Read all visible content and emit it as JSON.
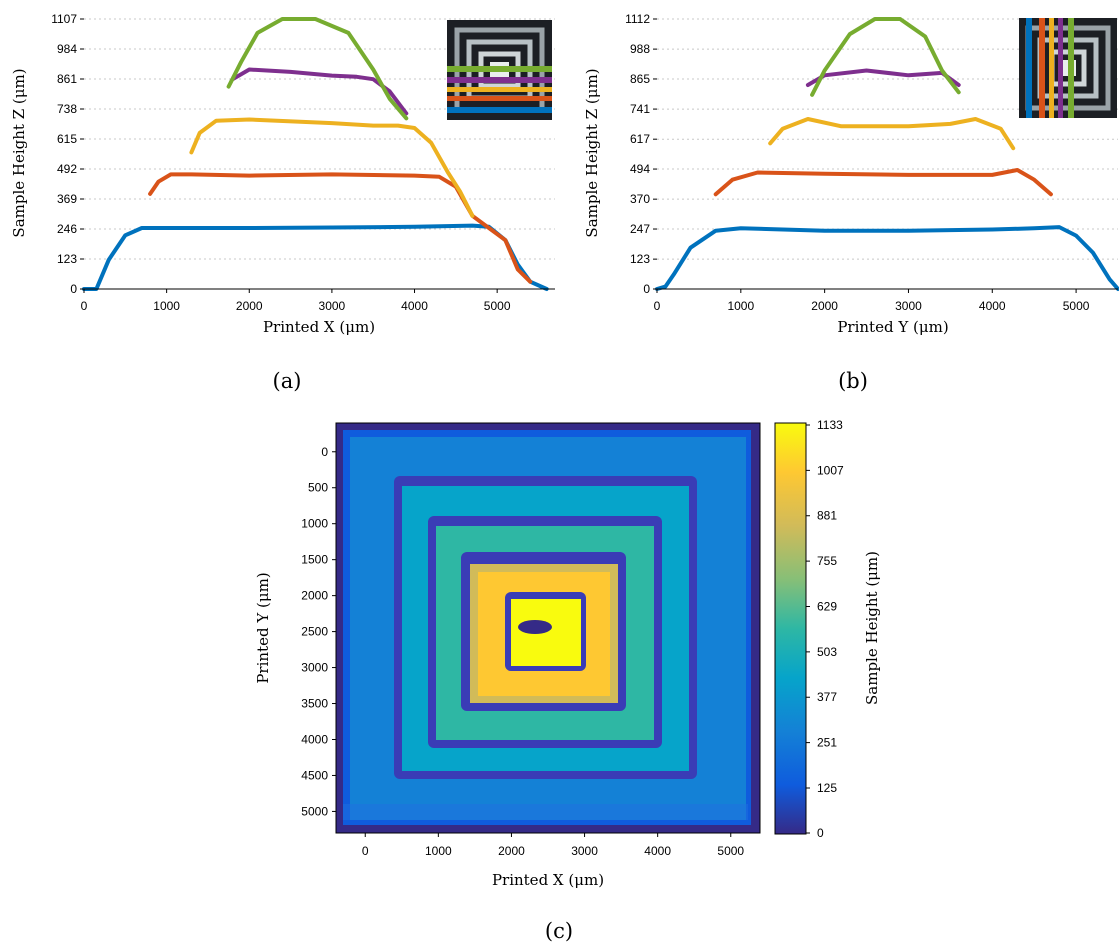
{
  "captions": {
    "a": "(a)",
    "b": "(b)",
    "c": "(c)"
  },
  "chart_data": [
    {
      "type": "line",
      "xlabel": "Printed X (μm)",
      "ylabel": "Sample Height Z (μm)",
      "xlim": [
        0,
        5700
      ],
      "ylim": [
        0,
        1107
      ],
      "xticks": [
        0,
        1000,
        2000,
        3000,
        4000,
        5000
      ],
      "yticks": [
        0,
        123,
        246,
        369,
        492,
        615,
        738,
        861,
        984,
        1107
      ],
      "grid": "horizontal-dotted",
      "inset": "top-right",
      "series": [
        {
          "color": "#0072BD",
          "x": [
            0,
            150,
            300,
            500,
            700,
            1000,
            2000,
            3000,
            4000,
            4700,
            4900,
            5100,
            5250,
            5400,
            5600
          ],
          "y": [
            0,
            0,
            120,
            220,
            250,
            250,
            250,
            252,
            255,
            260,
            255,
            200,
            100,
            30,
            0
          ]
        },
        {
          "color": "#D95319",
          "x": [
            800,
            900,
            1050,
            1300,
            2000,
            3000,
            4000,
            4300,
            4500,
            4700,
            4900,
            5100,
            5250,
            5400
          ],
          "y": [
            390,
            440,
            470,
            470,
            465,
            470,
            465,
            460,
            420,
            300,
            250,
            200,
            80,
            30
          ]
        },
        {
          "color": "#EDB120",
          "x": [
            1300,
            1400,
            1600,
            2000,
            3000,
            3500,
            3800,
            4000,
            4200,
            4400,
            4550,
            4700
          ],
          "y": [
            560,
            640,
            690,
            695,
            680,
            670,
            670,
            660,
            600,
            480,
            400,
            300
          ]
        },
        {
          "color": "#7E2F8E",
          "x": [
            1800,
            2000,
            2500,
            3000,
            3300,
            3500,
            3700,
            3900
          ],
          "y": [
            860,
            900,
            890,
            875,
            870,
            860,
            810,
            720
          ]
        },
        {
          "color": "#77AC30",
          "x": [
            1750,
            1900,
            2100,
            2400,
            2800,
            3200,
            3500,
            3700,
            3900
          ],
          "y": [
            830,
            930,
            1050,
            1107,
            1107,
            1050,
            900,
            780,
            700
          ]
        }
      ]
    },
    {
      "type": "line",
      "xlabel": "Printed Y (μm)",
      "ylabel": "Sample Height Z (μm)",
      "xlim": [
        0,
        5500
      ],
      "ylim": [
        0,
        1112
      ],
      "xticks": [
        0,
        1000,
        2000,
        3000,
        4000,
        5000
      ],
      "yticks": [
        0,
        123,
        247,
        370,
        494,
        617,
        741,
        865,
        988,
        1112
      ],
      "grid": "horizontal-dotted",
      "inset": "top-right",
      "series": [
        {
          "color": "#0072BD",
          "x": [
            0,
            100,
            200,
            400,
            700,
            1000,
            2000,
            3000,
            4000,
            4500,
            4800,
            5000,
            5200,
            5400,
            5500
          ],
          "y": [
            0,
            10,
            60,
            170,
            240,
            250,
            240,
            240,
            245,
            250,
            255,
            220,
            150,
            40,
            0
          ]
        },
        {
          "color": "#D95319",
          "x": [
            700,
            900,
            1200,
            2000,
            3000,
            4000,
            4300,
            4500,
            4700
          ],
          "y": [
            390,
            450,
            480,
            475,
            470,
            470,
            490,
            450,
            390
          ]
        },
        {
          "color": "#EDB120",
          "x": [
            1350,
            1500,
            1800,
            2200,
            3000,
            3500,
            3800,
            4100,
            4250
          ],
          "y": [
            600,
            660,
            700,
            670,
            670,
            680,
            700,
            660,
            580
          ]
        },
        {
          "color": "#7E2F8E",
          "x": [
            1800,
            2000,
            2500,
            3000,
            3400,
            3600
          ],
          "y": [
            840,
            880,
            900,
            880,
            890,
            840
          ]
        },
        {
          "color": "#77AC30",
          "x": [
            1850,
            2000,
            2300,
            2600,
            2900,
            3200,
            3400,
            3600
          ],
          "y": [
            800,
            900,
            1050,
            1112,
            1112,
            1040,
            900,
            810
          ]
        }
      ]
    },
    {
      "type": "heatmap",
      "xlabel": "Printed X (μm)",
      "ylabel": "Printed Y (μm)",
      "xlim": [
        -400,
        5400
      ],
      "ylim": [
        5300,
        -400
      ],
      "xticks": [
        0,
        1000,
        2000,
        3000,
        4000,
        5000
      ],
      "yticks": [
        0,
        500,
        1000,
        1500,
        2000,
        2500,
        3000,
        3500,
        4000,
        4500,
        5000
      ],
      "colorbar_label": "Sample Height (μm)",
      "colorbar_ticks": [
        0,
        125,
        251,
        377,
        503,
        629,
        755,
        881,
        1007,
        1133
      ],
      "colormap": "parula",
      "colors": [
        "#352a87",
        "#0f5cdd",
        "#1481d6",
        "#06a4ca",
        "#2eb7a4",
        "#87bf77",
        "#d1bb59",
        "#fec832",
        "#f9fb0e"
      ]
    }
  ]
}
